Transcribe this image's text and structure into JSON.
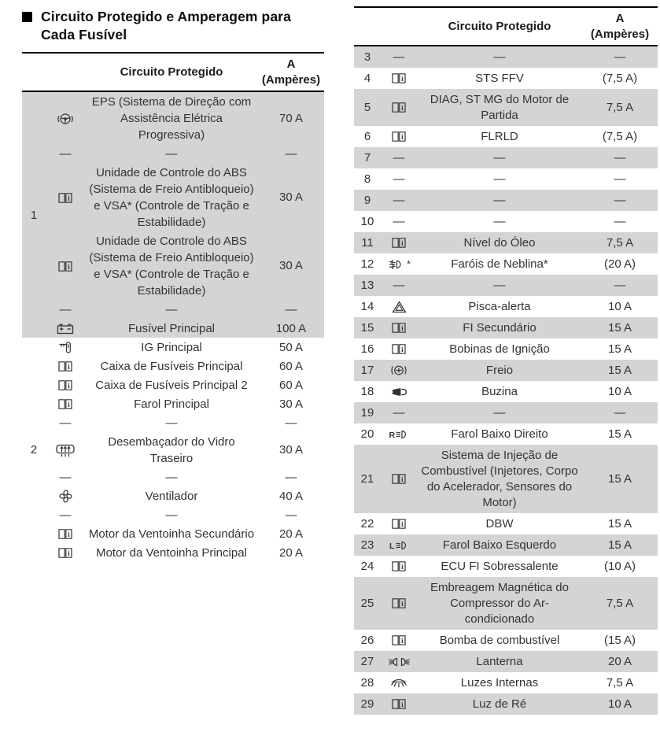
{
  "title": "Circuito Protegido e Amperagem para Cada Fusível",
  "strings": {
    "dash": "—"
  },
  "header": {
    "circuit": "Circuito Protegido",
    "amps_line1": "A",
    "amps_line2": "(Ampères)"
  },
  "left_table": {
    "groups": [
      {
        "number": "1",
        "shaded": true,
        "rows": [
          {
            "icon": "eps-steering",
            "circuit": "EPS (Sistema de Direção com Assistência Elétrica Progressiva)",
            "amps": "70 A"
          },
          {
            "icon": "dash",
            "circuit": "—",
            "amps": "—"
          },
          {
            "icon": "owners-manual",
            "circuit": "Unidade de Controle do ABS (Sistema de Freio Antibloqueio) e VSA* (Controle de Tração e Estabilidade)",
            "amps": "30 A"
          },
          {
            "icon": "owners-manual",
            "circuit": "Unidade de Controle do ABS (Sistema de Freio Antibloqueio) e VSA* (Controle de Tração e Estabilidade)",
            "amps": "30 A"
          },
          {
            "icon": "dash",
            "circuit": "—",
            "amps": "—"
          },
          {
            "icon": "battery",
            "circuit": "Fusível Principal",
            "amps": "100 A"
          }
        ]
      },
      {
        "number": "2",
        "shaded": false,
        "rows": [
          {
            "icon": "ignition-key",
            "circuit": "IG Principal",
            "amps": "50 A"
          },
          {
            "icon": "owners-manual",
            "circuit": "Caixa de Fusíveis Principal",
            "amps": "60 A"
          },
          {
            "icon": "owners-manual",
            "circuit": "Caixa de Fusíveis Principal 2",
            "amps": "60 A"
          },
          {
            "icon": "owners-manual",
            "circuit": "Farol Principal",
            "amps": "30 A"
          },
          {
            "icon": "dash",
            "circuit": "—",
            "amps": "—"
          },
          {
            "icon": "rear-defogger",
            "circuit": "Desembaçador do Vidro Traseiro",
            "amps": "30 A"
          },
          {
            "icon": "dash",
            "circuit": "—",
            "amps": "—"
          },
          {
            "icon": "fan",
            "circuit": "Ventilador",
            "amps": "40 A"
          },
          {
            "icon": "dash",
            "circuit": "—",
            "amps": "—"
          },
          {
            "icon": "owners-manual",
            "circuit": "Motor da Ventoinha Secundário",
            "amps": "20 A"
          },
          {
            "icon": "owners-manual",
            "circuit": "Motor da Ventoinha Principal",
            "amps": "20 A"
          }
        ]
      }
    ]
  },
  "right_table": {
    "rows": [
      {
        "number": "3",
        "icon": "dash",
        "circuit": "—",
        "amps": "—",
        "shaded": true
      },
      {
        "number": "4",
        "icon": "owners-manual",
        "circuit": "STS FFV",
        "amps": "(7,5 A)",
        "shaded": false
      },
      {
        "number": "5",
        "icon": "owners-manual",
        "circuit": "DIAG, ST MG do Motor de Partida",
        "amps": "7,5 A",
        "shaded": true
      },
      {
        "number": "6",
        "icon": "owners-manual",
        "circuit": "FLRLD",
        "amps": "(7,5 A)",
        "shaded": false
      },
      {
        "number": "7",
        "icon": "dash",
        "circuit": "—",
        "amps": "—",
        "shaded": true
      },
      {
        "number": "8",
        "icon": "dash",
        "circuit": "—",
        "amps": "—",
        "shaded": false
      },
      {
        "number": "9",
        "icon": "dash",
        "circuit": "—",
        "amps": "—",
        "shaded": true
      },
      {
        "number": "10",
        "icon": "dash",
        "circuit": "—",
        "amps": "—",
        "shaded": false
      },
      {
        "number": "11",
        "icon": "owners-manual",
        "circuit": "Nível do Óleo",
        "amps": "7,5 A",
        "shaded": true
      },
      {
        "number": "12",
        "icon": "fog-lights",
        "icon_note": "*",
        "circuit": "Faróis de Neblina*",
        "amps": "(20 A)",
        "shaded": false
      },
      {
        "number": "13",
        "icon": "dash",
        "circuit": "—",
        "amps": "—",
        "shaded": true
      },
      {
        "number": "14",
        "icon": "hazard",
        "circuit": "Pisca-alerta",
        "amps": "10 A",
        "shaded": false
      },
      {
        "number": "15",
        "icon": "owners-manual",
        "circuit": "FI Secundário",
        "amps": "15 A",
        "shaded": true
      },
      {
        "number": "16",
        "icon": "owners-manual",
        "circuit": "Bobinas de Ignição",
        "amps": "15 A",
        "shaded": false
      },
      {
        "number": "17",
        "icon": "brake",
        "circuit": "Freio",
        "amps": "15 A",
        "shaded": true
      },
      {
        "number": "18",
        "icon": "horn",
        "circuit": "Buzina",
        "amps": "10 A",
        "shaded": false
      },
      {
        "number": "19",
        "icon": "dash",
        "circuit": "—",
        "amps": "—",
        "shaded": true
      },
      {
        "number": "20",
        "icon": "low-beam-right",
        "circuit": "Farol Baixo Direito",
        "amps": "15 A",
        "shaded": false
      },
      {
        "number": "21",
        "icon": "owners-manual",
        "circuit": "Sistema de Injeção de Combustível (Injetores, Corpo do Acelerador, Sensores do Motor)",
        "amps": "15 A",
        "shaded": true
      },
      {
        "number": "22",
        "icon": "owners-manual",
        "circuit": "DBW",
        "amps": "15 A",
        "shaded": false
      },
      {
        "number": "23",
        "icon": "low-beam-left",
        "circuit": "Farol Baixo Esquerdo",
        "amps": "15 A",
        "shaded": true
      },
      {
        "number": "24",
        "icon": "owners-manual",
        "circuit": "ECU FI Sobressalente",
        "amps": "(10 A)",
        "shaded": false
      },
      {
        "number": "25",
        "icon": "owners-manual",
        "circuit": "Embreagem Magnética do Compressor do Ar-condicionado",
        "amps": "7,5 A",
        "shaded": true
      },
      {
        "number": "26",
        "icon": "owners-manual",
        "circuit": "Bomba de combustível",
        "amps": "(15 A)",
        "shaded": false
      },
      {
        "number": "27",
        "icon": "position-lights",
        "circuit": "Lanterna",
        "amps": "20 A",
        "shaded": true
      },
      {
        "number": "28",
        "icon": "interior-lights",
        "circuit": "Luzes Internas",
        "amps": "7,5 A",
        "shaded": false
      },
      {
        "number": "29",
        "icon": "owners-manual",
        "circuit": "Luz de Ré",
        "amps": "10 A",
        "shaded": true
      }
    ]
  },
  "colors": {
    "row_shaded": "#d4d4d4",
    "text": "#333333",
    "heading": "#0d0d0d"
  }
}
